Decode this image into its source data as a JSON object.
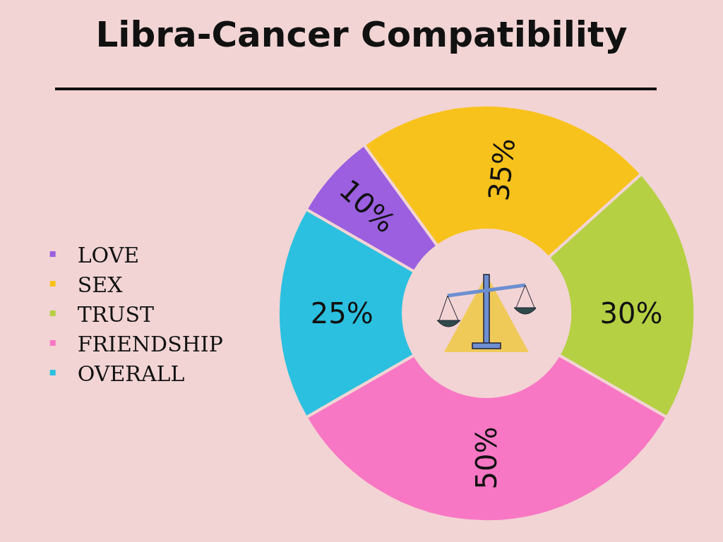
{
  "chart_data": {
    "type": "donut",
    "title": "Libra-Cancer Compatibility",
    "categories": [
      "LOVE",
      "SEX",
      "TRUST",
      "FRIENDSHIP",
      "OVERALL"
    ],
    "values": [
      10,
      35,
      30,
      50,
      25
    ],
    "value_labels": [
      "10%",
      "35%",
      "30%",
      "50%",
      "25%"
    ],
    "colors": [
      "#9b5fe0",
      "#f8c21c",
      "#b5d043",
      "#f877c4",
      "#2bc0e0"
    ],
    "legend": "left"
  }
}
